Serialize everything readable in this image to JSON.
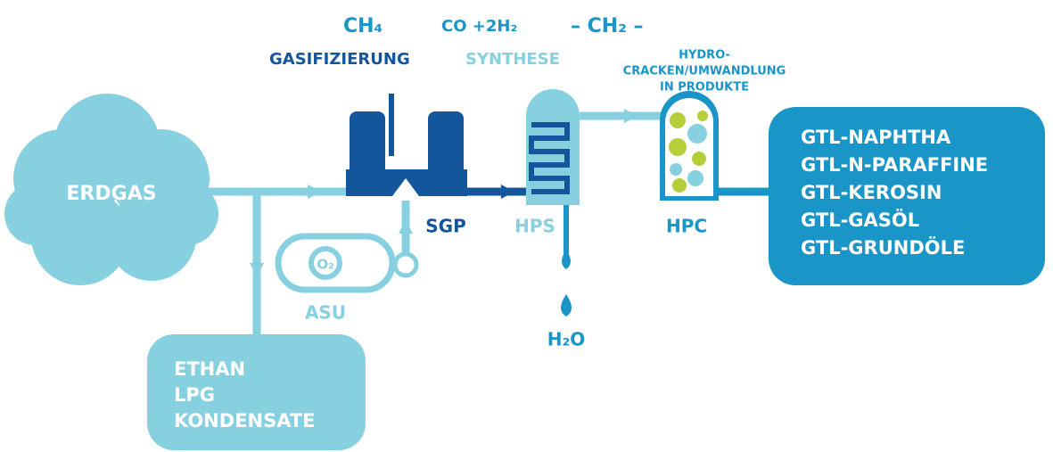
{
  "formulas": {
    "methane": "CH₄",
    "syngas": "CO +2H₂",
    "chain": "– CH₂ –",
    "water": "H₂O",
    "oxygen": "O₂"
  },
  "stages": {
    "gasification": "GASIFIZIERUNG",
    "synthesis": "SYNTHESE",
    "cracking": [
      "HYDRO-",
      "CRACKEN/UMWANDLUNG",
      "IN PRODUKTE"
    ]
  },
  "units": {
    "sgp": "SGP",
    "hps": "HPS",
    "hpc": "HPC",
    "asu": "ASU"
  },
  "feed": "ERDGAS",
  "byproducts": [
    "ETHAN",
    "LPG",
    "KONDENSATE"
  ],
  "products": [
    "GTL-NAPHTHA",
    "GTL-N-PARAFFINE",
    "GTL-KEROSIN",
    "GTL-GASÖL",
    "GTL-GRUNDÖLE"
  ]
}
